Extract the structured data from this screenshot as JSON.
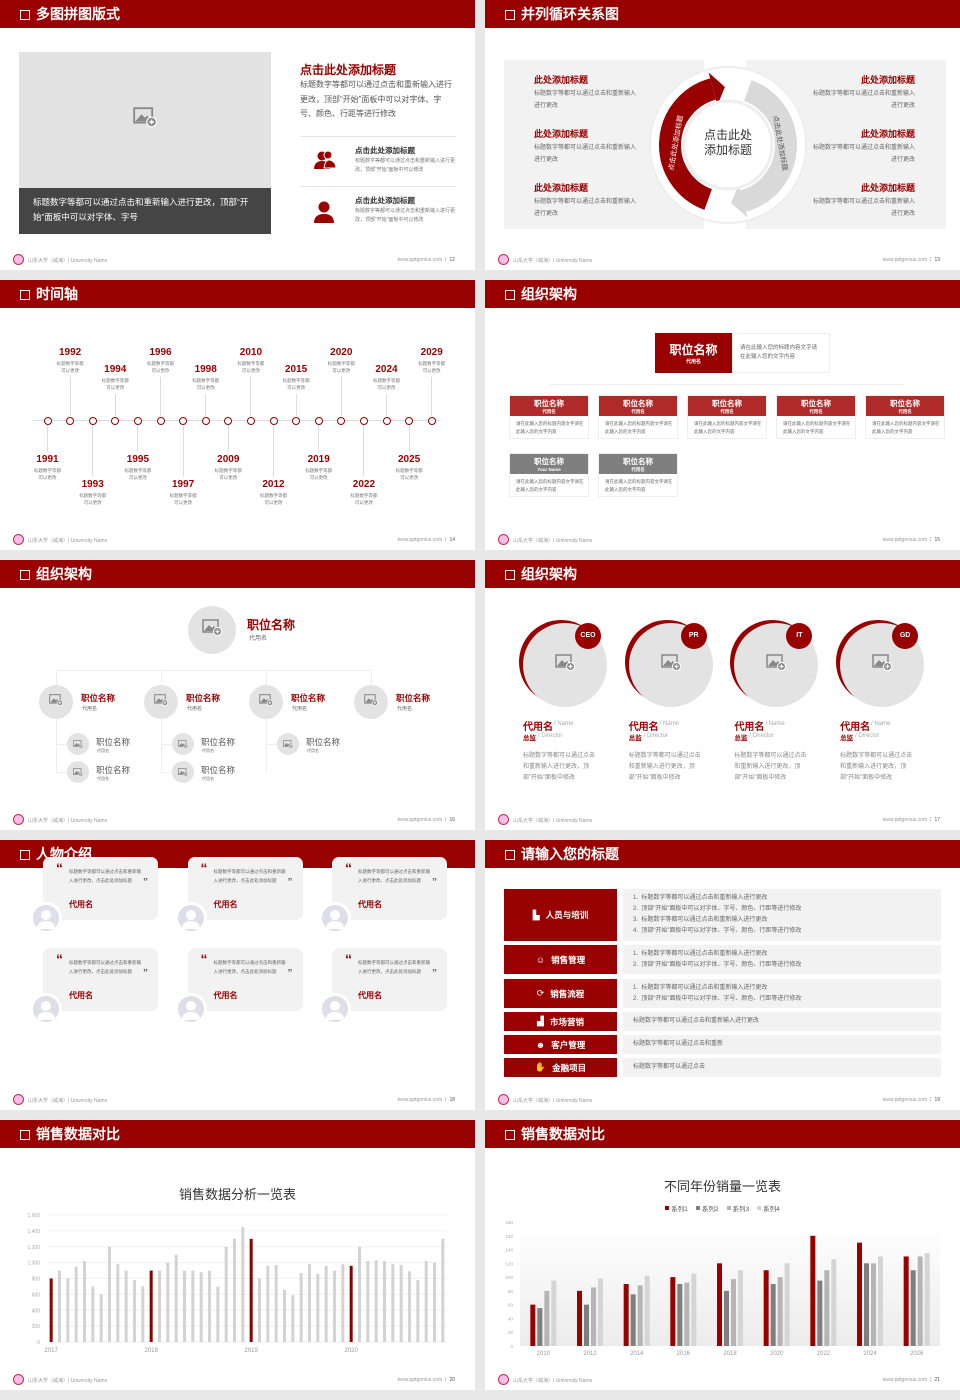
{
  "colors": {
    "brand_red": "#990000",
    "header_red": "#990000",
    "box_red": "#b02a2a",
    "gray_box": "#7f7f7f",
    "panel_gray": "#f2f2f2",
    "placeholder_gray": "#e3e2e2",
    "caption_dark": "#454545"
  },
  "footer": {
    "school": "山东大学（威海）| University Name",
    "site": "www.pptgenius.com",
    "separator": "|"
  },
  "multi_image": {
    "title": "多图拼图版式",
    "page": "12",
    "image_icon": "image-placeholder-icon",
    "caption": "标题数字等都可以通过点击和重新输入进行更改，顶部“开始”面板中可以对字体、字号",
    "heading": "点击此处添加标题",
    "paragraph": "标题数字等都可以通过点击和重新输入进行更改，顶部“开始”面板中可以对字体、字号、颜色、行距等进行修改",
    "items": [
      {
        "icon": "users-icon",
        "title": "点击此处添加标题",
        "text": "标题数字等都可以通过点击和重新输入进行更改，顶部“开始”面板中可以修改"
      },
      {
        "icon": "user-icon",
        "title": "点击此处添加标题",
        "text": "标题数字等都可以通过点击和重新输入进行更改，顶部“开始”面板中可以修改"
      }
    ]
  },
  "cycle": {
    "title": "并列循环关系图",
    "page": "13",
    "center": "点击此处添加标题",
    "arc_left": "点击此处添加标题",
    "arc_right": "点击此处添加标题",
    "left_items": [
      {
        "title": "此处添加标题",
        "text": "标题数字等都可以通过点击和重新输入进行更改"
      },
      {
        "title": "此处添加标题",
        "text": "标题数字等都可以通过点击和重新输入进行更改"
      },
      {
        "title": "此处添加标题",
        "text": "标题数字等都可以通过点击和重新输入进行更改"
      }
    ],
    "right_items": [
      {
        "title": "此处添加标题",
        "text": "标题数字等都可以通过点击和重新输入进行更改"
      },
      {
        "title": "此处添加标题",
        "text": "标题数字等都可以通过点击和重新输入进行更改"
      },
      {
        "title": "此处添加标题",
        "text": "标题数字等都可以通过点击和重新输入进行更改"
      }
    ]
  },
  "timeline": {
    "title": "时间轴",
    "page": "14",
    "events": [
      {
        "year": "1991",
        "text": "标题数字等都可以更改"
      },
      {
        "year": "1992",
        "text": "标题数字等都可以更改"
      },
      {
        "year": "1993",
        "text": "标题数字等都可以更改"
      },
      {
        "year": "1994",
        "text": "标题数字等都可以更改"
      },
      {
        "year": "1995",
        "text": "标题数字等都可以更改"
      },
      {
        "year": "1996",
        "text": "标题数字等都可以更改"
      },
      {
        "year": "1997",
        "text": "标题数字等都可以更改"
      },
      {
        "year": "1998",
        "text": "标题数字等都可以更改"
      },
      {
        "year": "2009",
        "text": "标题数字等都可以更改"
      },
      {
        "year": "2010",
        "text": "标题数字等都可以更改"
      },
      {
        "year": "2012",
        "text": "标题数字等都可以更改"
      },
      {
        "year": "2015",
        "text": "标题数字等都可以更改"
      },
      {
        "year": "2019",
        "text": "标题数字等都可以更改"
      },
      {
        "year": "2020",
        "text": "标题数字等都可以更改"
      },
      {
        "year": "2022",
        "text": "标题数字等都可以更改"
      },
      {
        "year": "2024",
        "text": "标题数字等都可以更改"
      },
      {
        "year": "2025",
        "text": "标题数字等都可以更改"
      },
      {
        "year": "2029",
        "text": "标题数字等都可以更改"
      }
    ]
  },
  "org_chart": {
    "title": "组织架构",
    "page": "15",
    "top": {
      "title": "职位名称",
      "sub": "代用名",
      "desc": "请在此输入您的标题内容文字请在此输入您的文字内容"
    },
    "row1": [
      {
        "title": "职位名称",
        "sub": "代用名",
        "desc": "请在此输入您的标题内容文字请在此输入您的文字内容"
      },
      {
        "title": "职位名称",
        "sub": "代用名",
        "desc": "请在此输入您的标题内容文字请在此输入您的文字内容"
      },
      {
        "title": "职位名称",
        "sub": "代用名",
        "desc": "请在此输入您的标题内容文字请在此输入您的文字内容"
      },
      {
        "title": "职位名称",
        "sub": "代用名",
        "desc": "请在此输入您的标题内容文字请在此输入您的文字内容"
      },
      {
        "title": "职位名称",
        "sub": "代用名",
        "desc": "请在此输入您的标题内容文字请在此输入您的文字内容"
      }
    ],
    "row2": [
      {
        "title": "职位名称",
        "sub": "Your Name",
        "desc": "请在此输入您的标题内容文字请在此输入您的文字内容"
      },
      {
        "title": "职位名称",
        "sub": "代用名",
        "desc": "请在此输入您的标题内容文字请在此输入您的文字内容"
      }
    ]
  },
  "org_tree": {
    "title": "组织架构",
    "page": "16",
    "top": {
      "title": "职位名称",
      "sub": "代用名"
    },
    "level2": [
      {
        "title": "职位名称",
        "sub": "代用名",
        "children": [
          {
            "title": "职位名称",
            "sub": "代用名"
          },
          {
            "title": "职位名称",
            "sub": "代用名"
          }
        ]
      },
      {
        "title": "职位名称",
        "sub": "代用名",
        "children": [
          {
            "title": "职位名称",
            "sub": "代用名"
          },
          {
            "title": "职位名称",
            "sub": "代用名"
          }
        ]
      },
      {
        "title": "职位名称",
        "sub": "代用名",
        "children": [
          {
            "title": "职位名称",
            "sub": "代用名"
          }
        ]
      },
      {
        "title": "职位名称",
        "sub": "代用名",
        "children": []
      }
    ]
  },
  "team": {
    "title": "组织架构",
    "page": "17",
    "members": [
      {
        "badge": "CEO",
        "name": "代用名",
        "name_en": "/ Name",
        "role": "总监",
        "role_en": "/ Director",
        "desc": "标题数字等都可以通过点击和重新输入进行更改，顶部“开始”面板中修改"
      },
      {
        "badge": "PR",
        "name": "代用名",
        "name_en": "/ Name",
        "role": "总监",
        "role_en": "/ Director",
        "desc": "标题数字等都可以通过点击和重新输入进行更改，顶部“开始”面板中修改"
      },
      {
        "badge": "IT",
        "name": "代用名",
        "name_en": "/ Name",
        "role": "总监",
        "role_en": "/ Director",
        "desc": "标题数字等都可以通过点击和重新输入进行更改，顶部“开始”面板中修改"
      },
      {
        "badge": "GD",
        "name": "代用名",
        "name_en": "/ Name",
        "role": "总监",
        "role_en": "/ Director",
        "desc": "标题数字等都可以通过点击和重新输入进行更改，顶部“开始”面板中修改"
      }
    ]
  },
  "testimonials": {
    "title": "人物介绍",
    "page": "18",
    "open_quote": "“",
    "close_quote": "”",
    "cards": [
      {
        "text": "标题数字等都可以通过点击和重新输入进行更改，点击此处添加标题",
        "name": "代用名"
      },
      {
        "text": "标题数字等都可以通过点击和重新输入进行更改，点击此处添加标题",
        "name": "代用名"
      },
      {
        "text": "标题数字等都可以通过点击和重新输入进行更改，点击此处添加标题",
        "name": "代用名"
      },
      {
        "text": "标题数字等都可以通过点击和重新输入进行更改，点击此处添加标题",
        "name": "代用名"
      },
      {
        "text": "标题数字等都可以通过点击和重新输入进行更改，点击此处添加标题",
        "name": "代用名"
      },
      {
        "text": "标题数字等都可以通过点击和重新输入进行更改，点击此处添加标题",
        "name": "代用名"
      }
    ]
  },
  "title_list": {
    "title": "请输入您的标题",
    "page": "19",
    "rows": [
      {
        "icon": "training-icon",
        "label": "人员与培训",
        "items": [
          "1.  标题数字等都可以通过点击和重新输入进行更改",
          "2.  顶部“开始”面板中可以对字体、字号、颜色、行距等进行修改",
          "3.  标题数字等都可以通过点击和重新输入进行更改",
          "4.  顶部“开始”面板中可以对字体、字号、颜色、行距等进行修改"
        ]
      },
      {
        "icon": "sales-management-icon",
        "label": "销售管理",
        "items": [
          "1.  标题数字等都可以通过点击和重新输入进行更改",
          "2.  顶部“开始”面板中可以对字体、字号、颜色、行距等进行修改"
        ]
      },
      {
        "icon": "cycle-icon",
        "label": "销售流程",
        "items": [
          "1.  标题数字等都可以通过点击和重新输入进行更改",
          "2.  顶部“开始”面板中可以对字体、字号、颜色、行距等进行修改"
        ]
      },
      {
        "icon": "bar-chart-icon",
        "label": "市场营销",
        "items": [
          "标题数字等都可以通过点击和重新输入进行更改"
        ]
      },
      {
        "icon": "customers-icon",
        "label": "客户管理",
        "items": [
          "标题数字等都可以通过点击和重新"
        ]
      },
      {
        "icon": "money-hand-icon",
        "label": "金融项目",
        "items": [
          "标题数字等都可以通过点击"
        ]
      }
    ]
  },
  "sales_chart_slide": {
    "title": "销售数据对比",
    "page": "20"
  },
  "yearly_chart_slide": {
    "title": "销售数据对比",
    "page": "21"
  },
  "chart_data": [
    {
      "type": "bar",
      "title": "销售数据分析一览表",
      "ylim": [
        0,
        1600
      ],
      "yticks": [
        "0",
        "200",
        "400",
        "600",
        "800",
        "1,000",
        "1,200",
        "1,400",
        "1,600"
      ],
      "x_tick_labels": [
        "2017",
        "2018",
        "2019",
        "2020"
      ],
      "highlight": "first bar of each year in red",
      "grid": true,
      "values": [
        800,
        900,
        800,
        950,
        1020,
        700,
        600,
        1200,
        980,
        900,
        780,
        700,
        900,
        900,
        1000,
        1100,
        900,
        900,
        880,
        900,
        700,
        1200,
        1300,
        1450,
        1300,
        800,
        960,
        970,
        660,
        590,
        870,
        980,
        860,
        960,
        900,
        980,
        960,
        1200,
        1020,
        1030,
        1020,
        980,
        970,
        890,
        780,
        1020,
        1000,
        1300
      ]
    },
    {
      "type": "bar",
      "title": "不同年份销量一览表",
      "ylim": [
        0,
        180
      ],
      "yticks": [
        "0",
        "20",
        "40",
        "60",
        "80",
        "100",
        "120",
        "140",
        "160",
        "180"
      ],
      "legend": "top",
      "categories": [
        "2010",
        "2012",
        "2014",
        "2016",
        "2018",
        "2020",
        "2022",
        "2024",
        "2026"
      ],
      "series": [
        {
          "name": "系列1",
          "color": "#990000",
          "values": [
            60,
            80,
            90,
            100,
            120,
            110,
            160,
            150,
            130
          ]
        },
        {
          "name": "系列2",
          "color": "#7f7f7f",
          "values": [
            55,
            60,
            75,
            90,
            80,
            90,
            95,
            120,
            110
          ]
        },
        {
          "name": "系列3",
          "color": "#b5b5b5",
          "values": [
            80,
            85,
            88,
            92,
            97,
            100,
            110,
            120,
            130
          ]
        },
        {
          "name": "系列4",
          "color": "#d5d5d5",
          "values": [
            95,
            98,
            102,
            105,
            110,
            120,
            126,
            130,
            135
          ]
        }
      ]
    }
  ]
}
